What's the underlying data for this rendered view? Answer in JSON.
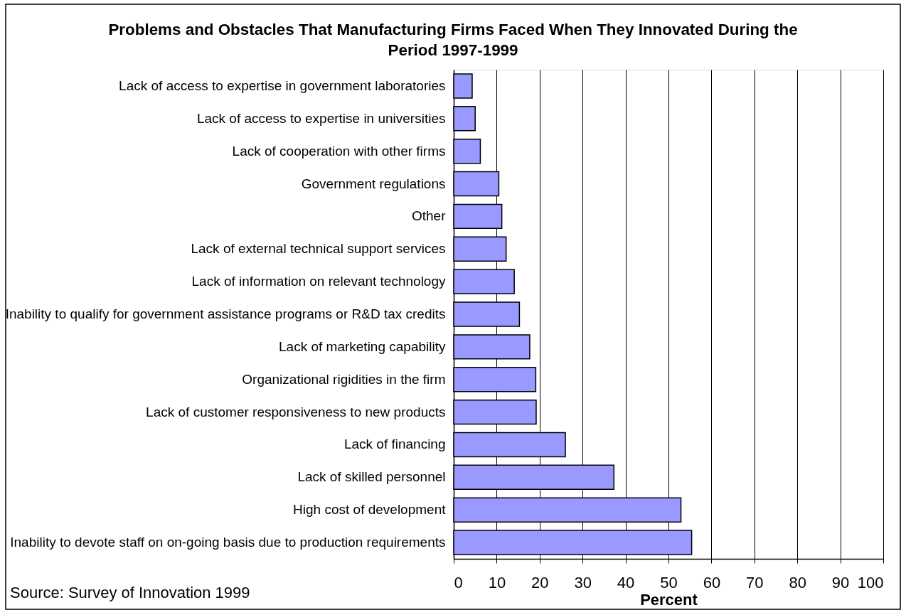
{
  "chart_data": {
    "type": "bar",
    "orientation": "horizontal",
    "title": "Problems and Obstacles That Manufacturing Firms Faced When They Innovated During the Period 1997-1999",
    "xlabel": "Percent",
    "categories": [
      "Lack of access to expertise in government laboratories",
      "Lack of access to expertise in universities",
      "Lack of cooperation with other firms",
      "Government regulations",
      "Other",
      "Lack of external technical support services",
      "Lack of information on relevant technology",
      "Inability to qualify for government assistance programs or R&D tax credits",
      "Lack of marketing capability",
      "Organizational rigidities in the firm",
      "Lack of customer responsiveness to new products",
      "Lack of financing",
      "Lack of skilled personnel",
      "High cost of development",
      "Inability to devote staff on on-going basis due to production requirements"
    ],
    "values": [
      4.3,
      5.0,
      6.2,
      10.5,
      11.2,
      12.2,
      14.1,
      15.3,
      17.7,
      19.1,
      19.2,
      26.0,
      37.3,
      52.9,
      55.4
    ],
    "color": "#9999ff",
    "xlim": [
      0,
      100
    ],
    "xticks": [
      0,
      10,
      20,
      30,
      40,
      50,
      60,
      70,
      80,
      90,
      100
    ],
    "grid": "x",
    "annotations": [
      "Source:  Survey of Innovation 1999"
    ]
  }
}
